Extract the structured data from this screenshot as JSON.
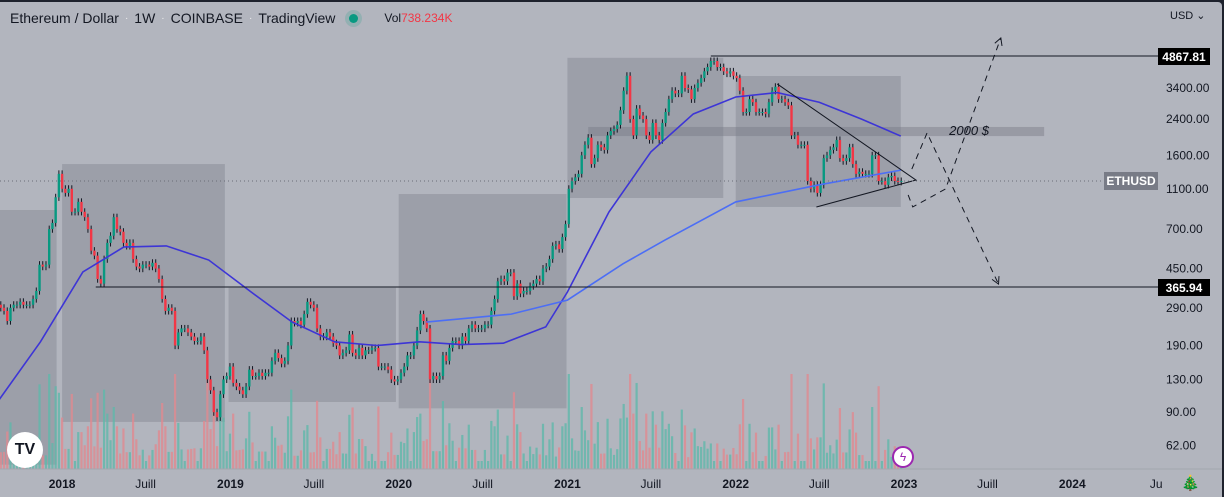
{
  "header": {
    "symbol": "Ethereum / Dollar",
    "interval": "1W",
    "exchange": "COINBASE",
    "source": "TradingView",
    "status_color": "#089981",
    "volume_label": "Vol",
    "volume_value": "738.234K"
  },
  "currency": "USD",
  "colors": {
    "up": "#089981",
    "down": "#f23645",
    "ma_fast": "#3d35d6",
    "ma_slow": "#4c6ef5",
    "box": "#787b86",
    "background": "#b2b5be"
  },
  "icons": {
    "logo": "tradingview-logo",
    "bolt": "lightning-icon",
    "tree": "christmas-tree-icon",
    "dropdown": "chevron-down-icon"
  },
  "chart_data": {
    "type": "candlestick",
    "symbol_label": "ETHUSD",
    "scale": "log",
    "ylim": [
      50,
      7000
    ],
    "start_date": "2017-08-14",
    "closes": [
      300,
      290,
      280,
      250,
      290,
      300,
      300,
      310,
      300,
      300,
      300,
      320,
      350,
      470,
      460,
      470,
      700,
      750,
      1000,
      1300,
      1100,
      1050,
      1100,
      850,
      850,
      950,
      850,
      800,
      700,
      550,
      520,
      400,
      380,
      500,
      600,
      650,
      800,
      700,
      680,
      600,
      580,
      600,
      500,
      460,
      450,
      470,
      470,
      460,
      480,
      450,
      400,
      320,
      280,
      290,
      280,
      190,
      220,
      230,
      230,
      220,
      210,
      200,
      200,
      210,
      180,
      130,
      115,
      90,
      85,
      110,
      130,
      135,
      150,
      125,
      120,
      115,
      110,
      120,
      145,
      135,
      135,
      140,
      135,
      140,
      140,
      160,
      175,
      165,
      155,
      160,
      190,
      250,
      245,
      250,
      240,
      270,
      310,
      300,
      290,
      230,
      210,
      210,
      220,
      210,
      195,
      190,
      170,
      175,
      180,
      215,
      175,
      170,
      185,
      170,
      180,
      180,
      185,
      185,
      150,
      150,
      150,
      145,
      130,
      127,
      130,
      140,
      150,
      170,
      170,
      190,
      225,
      270,
      250,
      230,
      130,
      135,
      130,
      135,
      170,
      160,
      185,
      200,
      200,
      190,
      210,
      200,
      230,
      240,
      230,
      230,
      230,
      240,
      240,
      280,
      320,
      390,
      400,
      390,
      430,
      430,
      330,
      380,
      340,
      350,
      350,
      370,
      380,
      400,
      390,
      450,
      460,
      500,
      580,
      590,
      560,
      640,
      740,
      1100,
      1200,
      1250,
      1300,
      1600,
      1800,
      1950,
      1450,
      1550,
      1800,
      1750,
      1700,
      2000,
      2100,
      2150,
      2250,
      2650,
      3300,
      3900,
      2400,
      2000,
      2700,
      2500,
      2400,
      2000,
      1900,
      2300,
      2000,
      1900,
      2300,
      2600,
      3000,
      3300,
      3200,
      3200,
      3900,
      3400,
      3350,
      3000,
      3400,
      3600,
      3800,
      4100,
      4300,
      4600,
      4600,
      4300,
      4300,
      4100,
      4000,
      4100,
      3900,
      3800,
      3300,
      2600,
      2600,
      3000,
      2900,
      2600,
      2600,
      2600,
      2550,
      2900,
      3300,
      3450,
      3000,
      3000,
      2900,
      2800,
      2000,
      2000,
      1800,
      1800,
      1800,
      1200,
      1100,
      1150,
      1050,
      1150,
      1550,
      1600,
      1700,
      1750,
      1900,
      1550,
      1500,
      1550,
      1750,
      1450,
      1300,
      1330,
      1300,
      1300,
      1300,
      1600,
      1600,
      1200,
      1200,
      1150,
      1250,
      1270,
      1200,
      1190,
      1200
    ],
    "moving_averages": [
      {
        "points": [
          [
            "2017-08-14",
            101
          ],
          [
            "2017-11-15",
            198
          ],
          [
            "2018-02-15",
            433
          ],
          [
            "2018-05-15",
            573
          ],
          [
            "2018-08-15",
            580
          ],
          [
            "2018-11-15",
            495
          ],
          [
            "2019-02-15",
            346
          ],
          [
            "2019-05-15",
            247
          ],
          [
            "2019-08-15",
            198
          ],
          [
            "2019-11-15",
            190
          ],
          [
            "2020-02-15",
            198
          ],
          [
            "2020-05-15",
            192
          ],
          [
            "2020-08-15",
            195
          ],
          [
            "2020-11-15",
            234
          ],
          [
            "2021-01-01",
            346
          ],
          [
            "2021-04-01",
            848
          ],
          [
            "2021-07-01",
            1662
          ],
          [
            "2021-10-01",
            2543
          ],
          [
            "2022-01-01",
            3075
          ],
          [
            "2022-04-01",
            3230
          ],
          [
            "2022-07-01",
            2900
          ],
          [
            "2022-10-01",
            2400
          ],
          [
            "2022-12-25",
            1985
          ]
        ]
      },
      {
        "points": [
          [
            "2020-03-01",
            247
          ],
          [
            "2020-09-01",
            270
          ],
          [
            "2021-01-01",
            316
          ],
          [
            "2021-05-01",
            474
          ],
          [
            "2021-08-01",
            620
          ],
          [
            "2022-01-01",
            949
          ],
          [
            "2022-07-01",
            1150
          ],
          [
            "2022-12-25",
            1355
          ]
        ]
      }
    ],
    "horizontal_lines": [
      {
        "price": 4867.81,
        "label": "4867.81",
        "from": "2021-11-08"
      },
      {
        "price": 365.94,
        "label": "365.94",
        "from": "2018-03-15"
      }
    ],
    "boxes": [
      {
        "from": "2017-08-01",
        "to": "2017-12-20",
        "top": 867,
        "bottom": 50
      },
      {
        "from": "2018-01-01",
        "to": "2018-12-20",
        "top": 1451,
        "bottom": 80.7
      },
      {
        "from": "2018-12-28",
        "to": "2019-12-26",
        "top": 363,
        "bottom": 100.9
      },
      {
        "from": "2020-01-01",
        "to": "2020-12-30",
        "top": 1037,
        "bottom": 94
      },
      {
        "from": "2021-01-01",
        "to": "2021-12-05",
        "top": 4770,
        "bottom": 992
      },
      {
        "from": "2022-01-01",
        "to": "2022-12-25",
        "top": 3890,
        "bottom": 897
      }
    ],
    "zone": {
      "from": "2021-02-15",
      "to": "2023-11-01",
      "top": 2198,
      "bottom": 1985,
      "label": "2000 $"
    },
    "triangle": [
      [
        "2022-04-01",
        3560
      ],
      [
        "2023-01-27",
        1213
      ],
      [
        "2022-06-25",
        897
      ]
    ],
    "projections": [
      [
        [
          "2023-01-18",
          1372
        ],
        [
          "2023-02-20",
          2055
        ],
        [
          "2023-07-25",
          378
        ]
      ],
      [
        [
          "2023-01-10",
          1026
        ],
        [
          "2023-01-20",
          897
        ],
        [
          "2023-04-01",
          1097
        ],
        [
          "2023-07-30",
          5955
        ]
      ]
    ],
    "current_price": 1200,
    "y_ticks": [
      "3400.00",
      "2400.00",
      "1600.00",
      "1100.00",
      "700.00",
      "450.00",
      "290.00",
      "190.00",
      "130.00",
      "90.00",
      "62.00"
    ],
    "x_ticks": [
      [
        "2018-01-01",
        "2018"
      ],
      [
        "2018-07-01",
        "Juill"
      ],
      [
        "2019-01-01",
        "2019"
      ],
      [
        "2019-07-01",
        "Juill"
      ],
      [
        "2020-01-01",
        "2020"
      ],
      [
        "2020-07-01",
        "Juill"
      ],
      [
        "2021-01-01",
        "2021"
      ],
      [
        "2021-07-01",
        "Juill"
      ],
      [
        "2022-01-01",
        "2022"
      ],
      [
        "2022-07-01",
        "Juill"
      ],
      [
        "2023-01-01",
        "2023"
      ],
      [
        "2023-07-01",
        "Juill"
      ],
      [
        "2024-01-01",
        "2024"
      ],
      [
        "2024-07-01",
        "Ju"
      ]
    ]
  }
}
